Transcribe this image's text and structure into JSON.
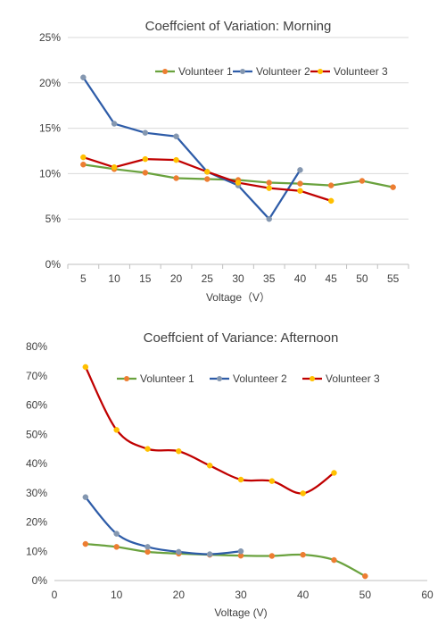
{
  "chart_data": [
    {
      "type": "line",
      "title": "Coeffcient of Variation: Morning",
      "xlabel": "Voltage（V）",
      "ylabel": "",
      "x_axis_kind": "category",
      "categories": [
        "5",
        "10",
        "15",
        "20",
        "25",
        "30",
        "35",
        "40",
        "45",
        "50",
        "55"
      ],
      "yticks": [
        "0%",
        "5%",
        "10%",
        "15%",
        "20%",
        "25%"
      ],
      "ylim": [
        0,
        25
      ],
      "grid": "horizontal",
      "legend": "top-right inside",
      "smooth": false,
      "series": [
        {
          "name": "Volunteer 1",
          "line_color": "#6aa23e",
          "marker_color": "#ed7d31",
          "x": [
            5,
            10,
            15,
            20,
            25,
            30,
            35,
            40,
            45,
            50,
            55
          ],
          "values": [
            11.0,
            10.5,
            10.1,
            9.5,
            9.4,
            9.3,
            9.0,
            8.9,
            8.7,
            9.2,
            8.5
          ]
        },
        {
          "name": "Volunteer 2",
          "line_color": "#2e5ca8",
          "marker_color": "#8497b0",
          "x": [
            5,
            10,
            15,
            20,
            25,
            30,
            35,
            40
          ],
          "values": [
            20.6,
            15.5,
            14.5,
            14.1,
            10.2,
            8.7,
            5.0,
            10.4
          ]
        },
        {
          "name": "Volunteer 3",
          "line_color": "#c00000",
          "marker_color": "#ffc000",
          "x": [
            5,
            10,
            15,
            20,
            25,
            30,
            35,
            40,
            45
          ],
          "values": [
            11.8,
            10.7,
            11.6,
            11.5,
            10.2,
            9.0,
            8.4,
            8.1,
            7.0
          ]
        }
      ]
    },
    {
      "type": "line",
      "title": "Coeffcient of Variance: Afternoon",
      "xlabel": "Voltage (V)",
      "ylabel": "",
      "x_axis_kind": "numeric",
      "xticks": [
        "0",
        "10",
        "20",
        "30",
        "40",
        "50",
        "60"
      ],
      "xlim": [
        0,
        60
      ],
      "yticks": [
        "0%",
        "10%",
        "20%",
        "30%",
        "40%",
        "50%",
        "60%",
        "70%",
        "80%"
      ],
      "ylim": [
        0,
        80
      ],
      "grid": "none",
      "legend": "top-right inside",
      "smooth": true,
      "series": [
        {
          "name": "Volunteer 1",
          "line_color": "#6aa23e",
          "marker_color": "#ed7d31",
          "x": [
            5,
            10,
            15,
            20,
            25,
            30,
            35,
            40,
            45,
            50
          ],
          "values": [
            12.5,
            11.5,
            9.8,
            9.2,
            8.8,
            8.5,
            8.4,
            8.8,
            7.0,
            1.5
          ]
        },
        {
          "name": "Volunteer 2",
          "line_color": "#2e5ca8",
          "marker_color": "#8497b0",
          "x": [
            5,
            10,
            15,
            20,
            25,
            30
          ],
          "values": [
            28.5,
            16.0,
            11.5,
            9.8,
            9.0,
            10.0
          ]
        },
        {
          "name": "Volunteer 3",
          "line_color": "#c00000",
          "marker_color": "#ffc000",
          "x": [
            5,
            10,
            15,
            20,
            25,
            30,
            35,
            40,
            45
          ],
          "values": [
            73.0,
            51.5,
            45.0,
            44.2,
            39.3,
            34.5,
            34.0,
            29.8,
            36.8
          ]
        }
      ]
    }
  ]
}
